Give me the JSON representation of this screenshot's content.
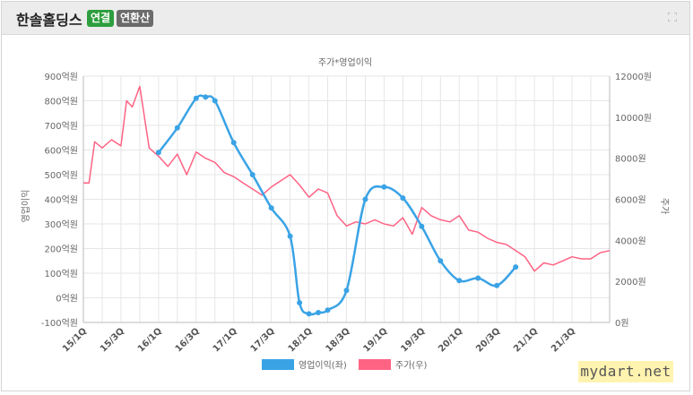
{
  "header": {
    "company": "한솔홀딩스",
    "badge_consolidated": "연결",
    "badge_annualized": "연환산"
  },
  "watermark": "mydart.net",
  "colors": {
    "profit": "#3aa3e6",
    "price": "#ff6384",
    "grid": "#e6e6e6"
  },
  "chart_data": {
    "type": "line",
    "title": "주가*영업이익",
    "ylabel_left": "영업이익",
    "ylabel_right": "주가",
    "x_ticks": [
      "15/1Q",
      "15/3Q",
      "16/1Q",
      "16/3Q",
      "17/1Q",
      "17/3Q",
      "18/1Q",
      "18/3Q",
      "19/1Q",
      "19/3Q",
      "20/1Q",
      "20/3Q",
      "21/1Q",
      "21/3Q"
    ],
    "y_left_ticks": [
      "900억원",
      "800억원",
      "700억원",
      "600억원",
      "500억원",
      "400억원",
      "300억원",
      "200억원",
      "100억원",
      "0억원",
      "-100억원"
    ],
    "y_right_ticks": [
      "12000원",
      "10000원",
      "8000원",
      "6000원",
      "4000원",
      "2000원",
      "0원"
    ],
    "ylim_left": [
      -100,
      900
    ],
    "ylim_right": [
      0,
      12000
    ],
    "legend": {
      "position": "bottom"
    },
    "series": [
      {
        "name": "영업이익(좌)",
        "axis": "left",
        "x": [
          4,
          5,
          6,
          6.5,
          7,
          8,
          9,
          10,
          11,
          11.5,
          12,
          12.5,
          13,
          14,
          15,
          16,
          17,
          18,
          19,
          20,
          21,
          22,
          23
        ],
        "values": [
          590,
          690,
          810,
          815,
          800,
          630,
          500,
          365,
          250,
          -20,
          -65,
          -60,
          -50,
          30,
          400,
          450,
          405,
          290,
          150,
          70,
          80,
          50,
          125
        ]
      },
      {
        "name": "주가(우)",
        "axis": "right",
        "x": [
          0,
          0.3,
          0.6,
          1,
          1.5,
          2,
          2.3,
          2.6,
          3,
          3.5,
          4,
          4.5,
          5,
          5.5,
          6,
          6.5,
          7,
          7.5,
          8,
          8.5,
          9,
          9.5,
          10,
          10.5,
          11,
          11.5,
          12,
          12.5,
          13,
          13.5,
          14,
          14.5,
          15,
          15.5,
          16,
          16.5,
          17,
          17.5,
          18,
          18.5,
          19,
          19.5,
          20,
          20.5,
          21,
          21.5,
          22,
          22.5,
          23,
          23.5,
          24,
          24.5,
          25,
          25.5,
          26,
          26.5,
          27,
          27.5,
          28
        ],
        "values": [
          6800,
          6800,
          8800,
          8500,
          8900,
          8600,
          10800,
          10500,
          11500,
          8500,
          8100,
          7600,
          8200,
          7200,
          8300,
          8000,
          7800,
          7300,
          7100,
          6800,
          6500,
          6200,
          6600,
          6900,
          7200,
          6700,
          6100,
          6500,
          6300,
          5200,
          4700,
          4900,
          4800,
          5000,
          4800,
          4700,
          5100,
          4300,
          5600,
          5200,
          5000,
          4900,
          5200,
          4500,
          4400,
          4100,
          3900,
          3800,
          3500,
          3200,
          2500,
          2900,
          2800,
          3000,
          3200,
          3100,
          3100,
          3400,
          3500
        ]
      }
    ]
  }
}
